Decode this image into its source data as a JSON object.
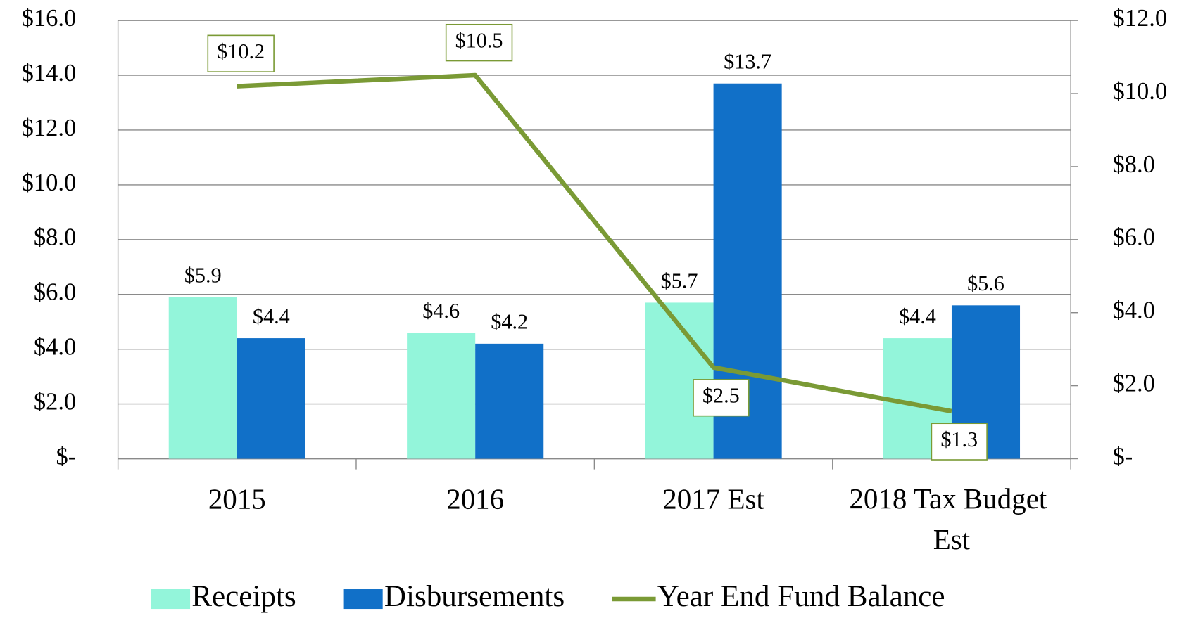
{
  "chart_data": {
    "type": "bar",
    "categories": [
      "2015",
      "2016",
      "2017 Est",
      "2018 Tax Budget Est"
    ],
    "series": [
      {
        "name": "Receipts",
        "color": "#93f5da",
        "values": [
          5.9,
          4.6,
          5.7,
          4.4
        ],
        "value_labels": [
          "$5.9",
          "$4.6",
          "$5.7",
          "$4.4"
        ]
      },
      {
        "name": "Disbursements",
        "color": "#1170c8",
        "values": [
          4.4,
          4.2,
          13.7,
          5.6
        ],
        "value_labels": [
          "$4.4",
          "$4.2",
          "$13.7",
          "$5.6"
        ]
      },
      {
        "name": "Year End Fund Balance",
        "type": "line",
        "axis": "y2",
        "color": "#7a9a35",
        "values": [
          10.2,
          10.5,
          2.5,
          1.3
        ],
        "value_labels": [
          "$10.2",
          "$10.5",
          "$2.5",
          "$1.3"
        ]
      }
    ],
    "ylim": [
      0,
      16
    ],
    "yticks": [
      {
        "value": 0,
        "label": "$-"
      },
      {
        "value": 2,
        "label": "$2.0"
      },
      {
        "value": 4,
        "label": "$4.0"
      },
      {
        "value": 6,
        "label": "$6.0"
      },
      {
        "value": 8,
        "label": "$8.0"
      },
      {
        "value": 10,
        "label": "$10.0"
      },
      {
        "value": 12,
        "label": "$12.0"
      },
      {
        "value": 14,
        "label": "$14.0"
      },
      {
        "value": 16,
        "label": "$16.0"
      }
    ],
    "y2lim": [
      0,
      12
    ],
    "y2ticks": [
      {
        "value": 0,
        "label": "$-"
      },
      {
        "value": 2,
        "label": "$2.0"
      },
      {
        "value": 4,
        "label": "$4.0"
      },
      {
        "value": 6,
        "label": "$6.0"
      },
      {
        "value": 8,
        "label": "$8.0"
      },
      {
        "value": 10,
        "label": "$10.0"
      },
      {
        "value": 12,
        "label": "$12.0"
      }
    ],
    "grid": true,
    "legend": "bottom"
  }
}
